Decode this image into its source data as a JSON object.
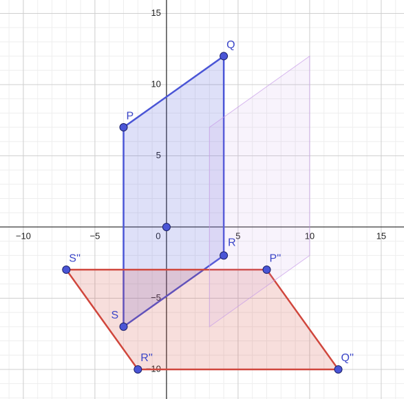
{
  "chart_data": {
    "type": "polygon",
    "xlim": [
      -11.63,
      16.59
    ],
    "ylim": [
      -12.08,
      15.94
    ],
    "xticks": [
      {
        "value": -10,
        "label": "−10"
      },
      {
        "value": -5,
        "label": "−5"
      },
      0,
      5,
      10,
      15
    ],
    "yticks": [
      {
        "value": -10,
        "label": "−10"
      },
      {
        "value": -5,
        "label": "−5"
      },
      5,
      10,
      15
    ],
    "grid": true,
    "series": [
      {
        "color": "#4a55d6",
        "x": [
          -3,
          4,
          4,
          -3
        ],
        "y": [
          7,
          12,
          -2,
          -7
        ],
        "labels": [
          "P",
          "Q",
          "R",
          "S"
        ],
        "show_points": true
      },
      {
        "color": "#d0463c",
        "x": [
          7,
          12,
          -2,
          -7
        ],
        "y": [
          -3,
          -10,
          -10,
          -3
        ],
        "labels": [
          "P''",
          "Q''",
          "R''",
          "S''"
        ],
        "show_points": true
      },
      {
        "color": "#c79be8",
        "x": [
          3,
          10,
          10,
          3
        ],
        "y": [
          7,
          12,
          -2,
          -7
        ],
        "show_points": false
      }
    ],
    "points": {
      "color": "#4a55d6",
      "x": [
        0
      ],
      "y": [
        0
      ]
    }
  }
}
